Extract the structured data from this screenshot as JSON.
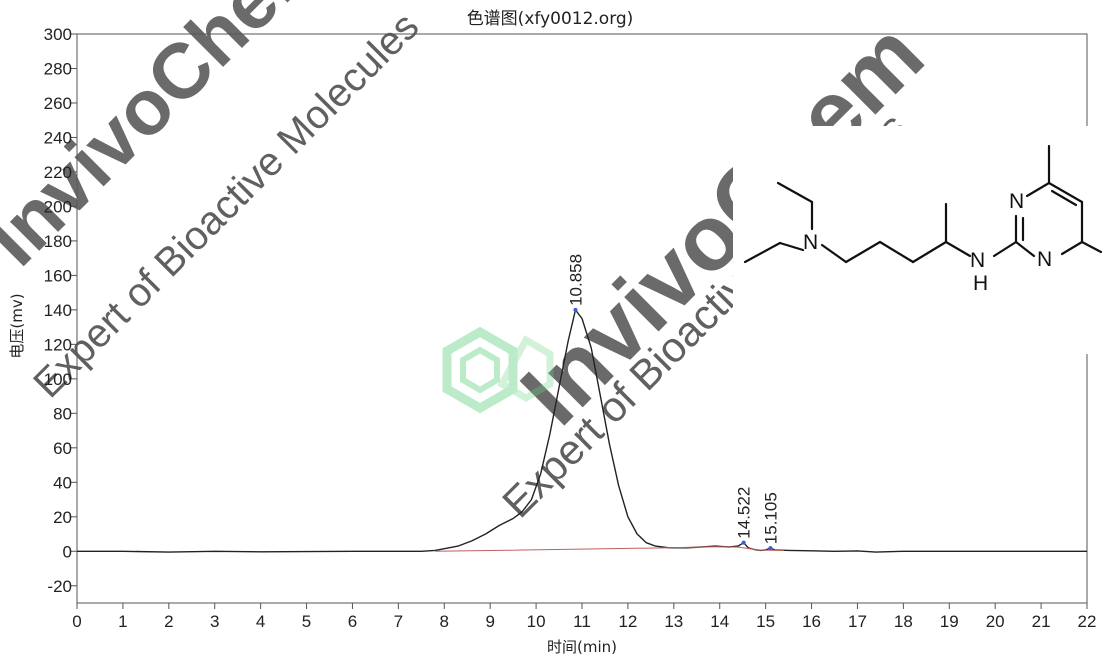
{
  "chart_data": {
    "type": "line",
    "title": "色谱图(xfy0012.org)",
    "xlabel": "时间(min)",
    "ylabel": "电压(mv)",
    "xlim": [
      0,
      22
    ],
    "ylim": [
      -30,
      300
    ],
    "x_ticks": [
      0,
      1,
      2,
      3,
      4,
      5,
      6,
      7,
      8,
      9,
      10,
      11,
      12,
      13,
      14,
      15,
      16,
      17,
      18,
      19,
      20,
      21,
      22
    ],
    "y_ticks": [
      -20,
      0,
      20,
      40,
      60,
      80,
      100,
      120,
      140,
      160,
      180,
      200,
      220,
      240,
      260,
      280,
      300
    ],
    "grid": false,
    "series": [
      {
        "color": "#222222",
        "points": [
          [
            0,
            0
          ],
          [
            1,
            0
          ],
          [
            2,
            -0.5
          ],
          [
            3,
            0
          ],
          [
            4,
            -0.3
          ],
          [
            5,
            -0.2
          ],
          [
            6,
            0
          ],
          [
            7,
            0
          ],
          [
            7.5,
            0
          ],
          [
            7.8,
            0.5
          ],
          [
            8.0,
            1.5
          ],
          [
            8.3,
            3
          ],
          [
            8.6,
            6
          ],
          [
            8.9,
            10
          ],
          [
            9.2,
            15
          ],
          [
            9.5,
            19
          ],
          [
            9.7,
            23
          ],
          [
            9.9,
            30
          ],
          [
            10.1,
            45
          ],
          [
            10.3,
            68
          ],
          [
            10.5,
            95
          ],
          [
            10.7,
            122
          ],
          [
            10.858,
            140
          ],
          [
            11.0,
            135
          ],
          [
            11.2,
            118
          ],
          [
            11.4,
            90
          ],
          [
            11.6,
            62
          ],
          [
            11.8,
            38
          ],
          [
            12.0,
            20
          ],
          [
            12.2,
            10
          ],
          [
            12.4,
            5
          ],
          [
            12.6,
            3
          ],
          [
            12.9,
            2
          ],
          [
            13.3,
            2
          ],
          [
            13.6,
            2.5
          ],
          [
            13.9,
            3
          ],
          [
            14.2,
            2.5
          ],
          [
            14.4,
            3
          ],
          [
            14.522,
            5
          ],
          [
            14.62,
            2
          ],
          [
            14.75,
            1
          ],
          [
            14.9,
            0.5
          ],
          [
            15.0,
            0.8
          ],
          [
            15.105,
            1.8
          ],
          [
            15.2,
            0.8
          ],
          [
            15.5,
            0.5
          ],
          [
            16,
            0.3
          ],
          [
            16.5,
            0
          ],
          [
            17,
            0.2
          ],
          [
            17.4,
            -0.5
          ],
          [
            18,
            0
          ],
          [
            19,
            0
          ],
          [
            20,
            0
          ],
          [
            21,
            0
          ],
          [
            22,
            0
          ]
        ]
      },
      {
        "color": "#c06060",
        "points": [
          [
            7.8,
            0
          ],
          [
            12.9,
            2
          ],
          [
            13.9,
            2.6
          ],
          [
            14.4,
            2.4
          ],
          [
            14.9,
            0.6
          ],
          [
            15.4,
            0.5
          ]
        ]
      }
    ],
    "annotations": [
      {
        "x": 10.858,
        "y": 140,
        "text": "10.858"
      },
      {
        "x": 14.522,
        "y": 5,
        "text": "14.522"
      },
      {
        "x": 15.105,
        "y": 1.8,
        "text": "15.105"
      }
    ]
  },
  "watermark": {
    "brand": "InvivoChem",
    "tagline": "Expert of Bioactive Molecules",
    "color": "#e8312f",
    "tagline_color": "#9a8fd8"
  },
  "molecule": {
    "atoms": [
      "N",
      "N",
      "N",
      "N",
      "H"
    ]
  }
}
